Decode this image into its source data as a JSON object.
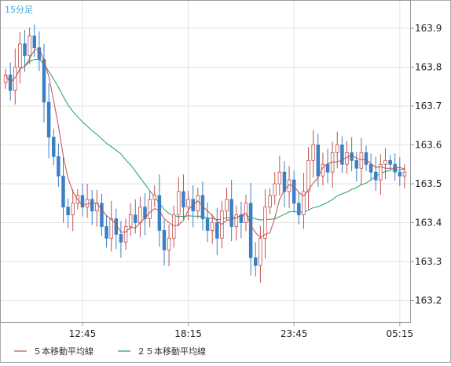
{
  "chart_data": {
    "type": "candlestick",
    "timeframe_label": "15分足",
    "title": "",
    "xlabel": "",
    "ylabel": "",
    "ylim": [
      163.16,
      164.0
    ],
    "y_ticks": [
      163.2,
      163.3,
      163.4,
      163.5,
      163.6,
      163.7,
      163.8,
      163.9
    ],
    "x_tick_labels": [
      {
        "index": 16,
        "label": "12:45"
      },
      {
        "index": 38,
        "label": "18:15"
      },
      {
        "index": 60,
        "label": "23:45"
      },
      {
        "index": 82,
        "label": "05:15"
      }
    ],
    "legend": [
      {
        "name": "５本移動平均線",
        "color": "#c0504d"
      },
      {
        "name": "２５本移動平均線",
        "color": "#1f9e6e"
      }
    ],
    "colors": {
      "up": "#c0504d",
      "down": "#3b7fc4",
      "ma5": "#c0504d",
      "ma25": "#1f9e6e",
      "label": "#3aa8d8"
    },
    "closes": [
      163.78,
      163.74,
      163.8,
      163.86,
      163.83,
      163.88,
      163.85,
      163.82,
      163.71,
      163.62,
      163.57,
      163.52,
      163.44,
      163.42,
      163.45,
      163.47,
      163.44,
      163.46,
      163.43,
      163.45,
      163.39,
      163.36,
      163.41,
      163.37,
      163.35,
      163.39,
      163.42,
      163.4,
      163.44,
      163.41,
      163.46,
      163.47,
      163.38,
      163.33,
      163.36,
      163.42,
      163.48,
      163.44,
      163.46,
      163.43,
      163.47,
      163.41,
      163.38,
      163.4,
      163.36,
      163.43,
      163.46,
      163.39,
      163.42,
      163.4,
      163.45,
      163.31,
      163.29,
      163.36,
      163.44,
      163.47,
      163.5,
      163.53,
      163.48,
      163.51,
      163.45,
      163.42,
      163.48,
      163.56,
      163.6,
      163.52,
      163.55,
      163.53,
      163.58,
      163.6,
      163.55,
      163.58,
      163.56,
      163.54,
      163.58,
      163.55,
      163.53,
      163.51,
      163.55,
      163.56,
      163.55,
      163.53,
      163.52,
      163.53
    ]
  }
}
